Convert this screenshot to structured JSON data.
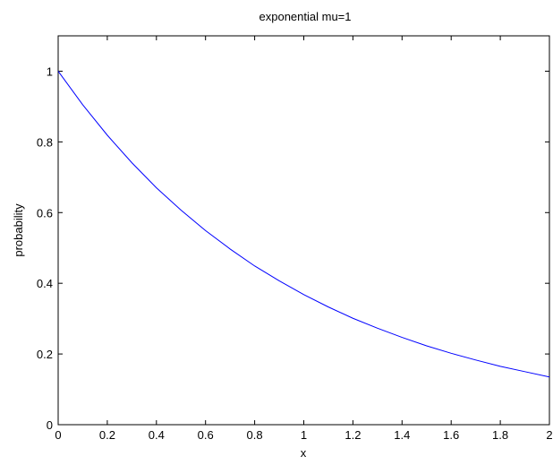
{
  "chart_data": {
    "type": "line",
    "title": "exponential mu=1",
    "xlabel": "x",
    "ylabel": "probability",
    "xlim": [
      0,
      2
    ],
    "ylim": [
      0,
      1.1
    ],
    "x_ticks": [
      "0",
      "0.2",
      "0.4",
      "0.6",
      "0.8",
      "1",
      "1.2",
      "1.4",
      "1.6",
      "1.8",
      "2"
    ],
    "y_ticks": [
      "0",
      "0.2",
      "0.4",
      "0.6",
      "0.8",
      "1"
    ],
    "grid": false,
    "series": [
      {
        "color": "#0000ff",
        "x": [
          0,
          0.1,
          0.2,
          0.3,
          0.4,
          0.5,
          0.6,
          0.7,
          0.8,
          0.9,
          1.0,
          1.1,
          1.2,
          1.3,
          1.4,
          1.5,
          1.6,
          1.7,
          1.8,
          1.9,
          2.0
        ],
        "y": [
          1.0,
          0.905,
          0.819,
          0.741,
          0.67,
          0.607,
          0.549,
          0.497,
          0.449,
          0.407,
          0.368,
          0.333,
          0.301,
          0.273,
          0.247,
          0.223,
          0.202,
          0.183,
          0.165,
          0.15,
          0.135
        ]
      }
    ]
  }
}
